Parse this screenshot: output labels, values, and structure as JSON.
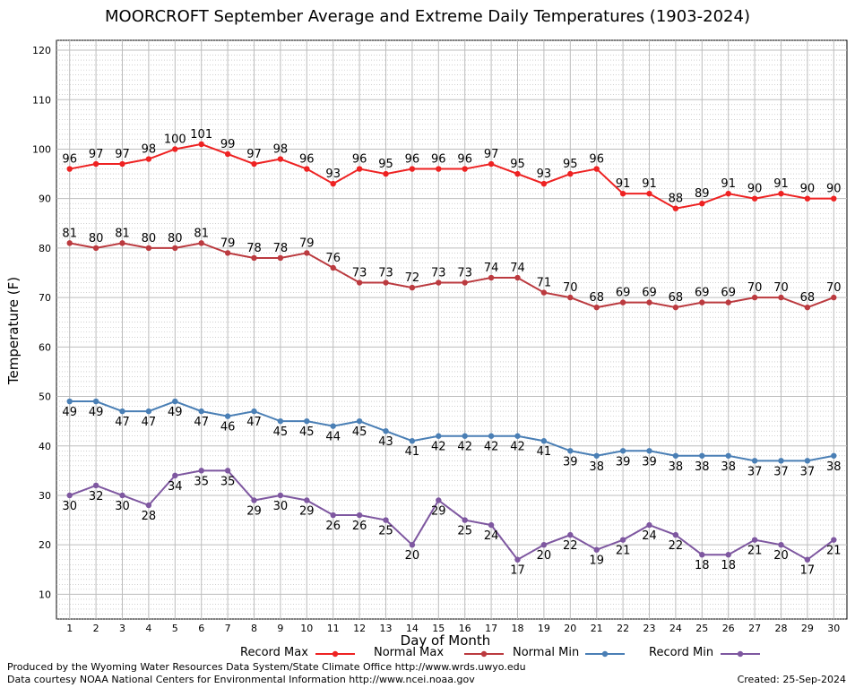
{
  "title": "MOORCROFT September Average and Extreme Daily Temperatures (1903-2024)",
  "footer": {
    "line1": "Produced by the Wyoming Water Resources Data System/State Climate Office http://www.wrds.uwyo.edu",
    "line2": "Data courtesy NOAA National Centers for Environmental Information http://www.ncei.noaa.gov",
    "created": "Created:  25-Sep-2024"
  },
  "chart_data": {
    "type": "line",
    "title": "MOORCROFT September Average and Extreme Daily Temperatures (1903-2024)",
    "xlabel": "Day of Month",
    "ylabel": "Temperature (F)",
    "x": [
      1,
      2,
      3,
      4,
      5,
      6,
      7,
      8,
      9,
      10,
      11,
      12,
      13,
      14,
      15,
      16,
      17,
      18,
      19,
      20,
      21,
      22,
      23,
      24,
      25,
      26,
      27,
      28,
      29,
      30
    ],
    "xlim": [
      0.5,
      30.5
    ],
    "ylim": [
      5,
      122
    ],
    "yticks": [
      10,
      20,
      30,
      40,
      50,
      60,
      70,
      80,
      90,
      100,
      110,
      120
    ],
    "grid": true,
    "legend_position": "bottom",
    "series": [
      {
        "name": "Record Max",
        "color": "#ee2222",
        "label_pos": "above",
        "values": [
          96,
          97,
          97,
          98,
          100,
          101,
          99,
          97,
          98,
          96,
          93,
          96,
          95,
          96,
          96,
          96,
          97,
          95,
          93,
          95,
          96,
          91,
          91,
          88,
          89,
          91,
          90,
          91,
          90,
          90
        ]
      },
      {
        "name": "Normal Max",
        "color": "#bb3a3f",
        "label_pos": "above",
        "values": [
          81,
          80,
          81,
          80,
          80,
          81,
          79,
          78,
          78,
          79,
          76,
          73,
          73,
          72,
          73,
          73,
          74,
          74,
          71,
          70,
          68,
          69,
          69,
          68,
          69,
          69,
          70,
          70,
          68,
          70
        ]
      },
      {
        "name": "Normal Min",
        "color": "#4a7fb5",
        "label_pos": "below",
        "values": [
          49,
          49,
          47,
          47,
          49,
          47,
          46,
          47,
          45,
          45,
          44,
          45,
          43,
          41,
          42,
          42,
          42,
          42,
          41,
          39,
          38,
          39,
          39,
          38,
          38,
          38,
          37,
          37,
          37,
          38
        ]
      },
      {
        "name": "Record Min",
        "color": "#7e57a0",
        "label_pos": "below",
        "values": [
          30,
          32,
          30,
          28,
          34,
          35,
          35,
          29,
          30,
          29,
          26,
          26,
          25,
          20,
          29,
          25,
          24,
          17,
          20,
          22,
          19,
          21,
          24,
          22,
          18,
          18,
          21,
          20,
          17,
          21
        ]
      }
    ]
  }
}
